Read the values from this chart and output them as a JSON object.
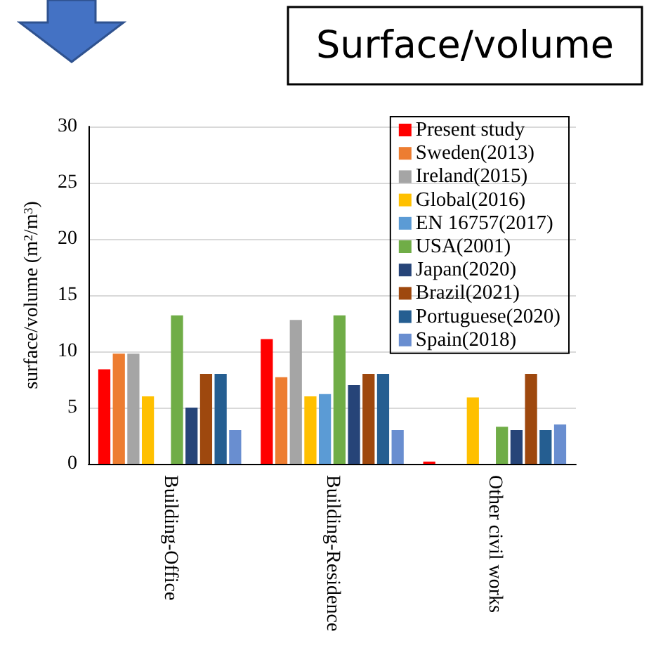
{
  "chart_data": {
    "type": "bar",
    "title": "Surface/volume",
    "ylabel": "surface/volume (m$^{2}$/m$^{3}$)",
    "categories": [
      "Building-Office",
      "Building-Residence",
      "Other civil works"
    ],
    "series": [
      {
        "name": "Present study",
        "color": "#ff0000",
        "values": [
          8.4,
          11.1,
          0.2
        ]
      },
      {
        "name": "Sweden(2013)",
        "color": "#ed7d31",
        "values": [
          9.8,
          7.7,
          null
        ]
      },
      {
        "name": "Ireland(2015)",
        "color": "#a5a5a5",
        "values": [
          9.8,
          12.8,
          null
        ]
      },
      {
        "name": "Global(2016)",
        "color": "#ffc000",
        "values": [
          6,
          6,
          5.9
        ]
      },
      {
        "name": "EN 16757(2017)",
        "color": "#5b9bd5",
        "values": [
          null,
          6.2,
          null
        ]
      },
      {
        "name": "USA(2001)",
        "color": "#70ad47",
        "values": [
          13.2,
          13.2,
          3.3
        ]
      },
      {
        "name": "Japan(2020)",
        "color": "#264478",
        "values": [
          5,
          7,
          3
        ]
      },
      {
        "name": "Brazil(2021)",
        "color": "#9e480e",
        "values": [
          8,
          8,
          8
        ]
      },
      {
        "name": "Portuguese(2020)",
        "color": "#255e91",
        "values": [
          8,
          8,
          3
        ]
      },
      {
        "name": "Spain(2018)",
        "color": "#698ed0",
        "values": [
          3,
          3,
          3.5
        ]
      }
    ],
    "ylim": [
      0,
      30
    ],
    "yticks": [
      0,
      5,
      10,
      15,
      20,
      25,
      30
    ],
    "grid": "y",
    "legend": "top right"
  }
}
